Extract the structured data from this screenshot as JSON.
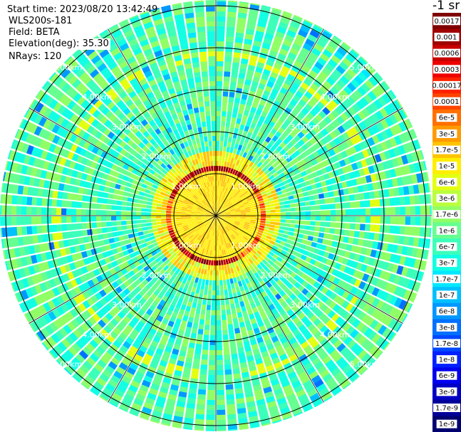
{
  "header": {
    "start_time": "Start time: 2023/08/20 13:42:49",
    "instrument": "WLS200s-181",
    "field": "Field: BETA",
    "elevation": "Elevation(deg): 35.30",
    "nrays": "NRays: 120"
  },
  "units_label": "-1 sr",
  "range_labels": [
    "1.00km",
    "2.00km",
    "3.00km",
    "4.00km",
    "5.00km"
  ],
  "nrays": 120,
  "colorbar": {
    "labels": [
      "0.0017",
      "0.001",
      "0.0006",
      "0.0003",
      "0.00017",
      "0.0001",
      "6e-5",
      "3e-5",
      "1.7e-5",
      "1e-5",
      "6e-6",
      "3e-6",
      "1.7e-6",
      "1e-6",
      "6e-7",
      "3e-7",
      "1.7e-7",
      "1e-7",
      "6e-8",
      "3e-8",
      "1.7e-8",
      "1e-8",
      "6e-9",
      "3e-9",
      "1.7e-9",
      "1e-9"
    ],
    "colors": [
      "#7f0000",
      "#a00000",
      "#c80000",
      "#ee0000",
      "#ff2200",
      "#ff4400",
      "#ff7000",
      "#ff9a00",
      "#ffc400",
      "#ffee00",
      "#e4ff12",
      "#baff3c",
      "#90ff66",
      "#66ff90",
      "#3cffba",
      "#12ffe4",
      "#00e8ff",
      "#00c0ff",
      "#0098ff",
      "#0070ff",
      "#0048ff",
      "#0020ff",
      "#0000ee",
      "#0000c4",
      "#00009a",
      "#000070"
    ]
  }
}
